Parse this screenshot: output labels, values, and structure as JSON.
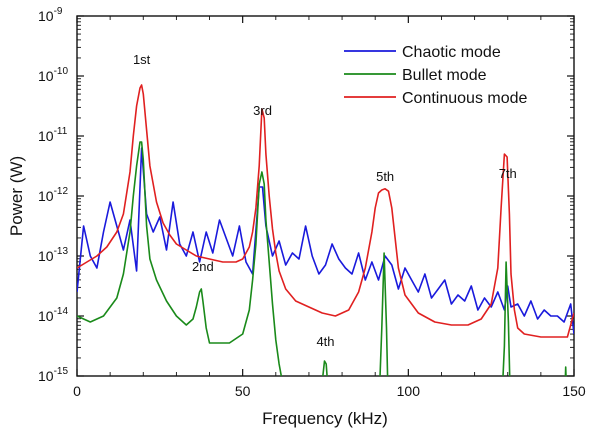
{
  "chart_data": {
    "type": "line",
    "xlabel": "Frequency (kHz)",
    "ylabel": "Power (W)",
    "xlim": [
      0,
      150
    ],
    "ylim_log10": [
      -15,
      -9
    ],
    "yscale": "log",
    "x_ticks": [
      0,
      50,
      100,
      150
    ],
    "y_ticks": [
      {
        "base": "10",
        "exp": "-9"
      },
      {
        "base": "10",
        "exp": "-10"
      },
      {
        "base": "10",
        "exp": "-11"
      },
      {
        "base": "10",
        "exp": "-12"
      },
      {
        "base": "10",
        "exp": "-13"
      },
      {
        "base": "10",
        "exp": "-14"
      },
      {
        "base": "10",
        "exp": "-15"
      }
    ],
    "legend_position": "top-right",
    "annotations": [
      {
        "text": "1st",
        "x": 19.5,
        "log10y": -9.8
      },
      {
        "text": "2nd",
        "x": 38,
        "log10y": -13.25
      },
      {
        "text": "3rd",
        "x": 56,
        "log10y": -10.65
      },
      {
        "text": "4th",
        "x": 75,
        "log10y": -14.5
      },
      {
        "text": "5th",
        "x": 93,
        "log10y": -11.75
      },
      {
        "text": "7th",
        "x": 130,
        "log10y": -11.7
      }
    ],
    "series": [
      {
        "name": "Chaotic mode",
        "color": "#1a1adc",
        "x": [
          0,
          2,
          4,
          6,
          8,
          10,
          12,
          14,
          16,
          18,
          19.5,
          21,
          23,
          25,
          27,
          29,
          31,
          33,
          35,
          37,
          39,
          41,
          43,
          45,
          47,
          49,
          51,
          53,
          55,
          56,
          57,
          59,
          61,
          63,
          65,
          67,
          69,
          71,
          73,
          75,
          77,
          79,
          81,
          83,
          85,
          87,
          89,
          91,
          93,
          95,
          97,
          99,
          101,
          103,
          105,
          107,
          109,
          111,
          113,
          115,
          117,
          119,
          121,
          123,
          125,
          127,
          129,
          130,
          131,
          133,
          135,
          137,
          139,
          141,
          143,
          145,
          147,
          149,
          150
        ],
        "log10y": [
          -13.6,
          -12.5,
          -13.0,
          -13.2,
          -12.6,
          -12.1,
          -12.5,
          -12.9,
          -12.4,
          -13.25,
          -11.2,
          -12.3,
          -12.6,
          -12.35,
          -12.9,
          -12.1,
          -12.8,
          -13.0,
          -12.6,
          -13.1,
          -12.6,
          -12.95,
          -12.4,
          -12.7,
          -13.0,
          -12.5,
          -13.1,
          -13.3,
          -11.85,
          -11.85,
          -12.5,
          -13.0,
          -12.75,
          -13.15,
          -12.95,
          -13.05,
          -12.5,
          -13.0,
          -13.3,
          -13.15,
          -12.8,
          -13.05,
          -13.2,
          -13.3,
          -12.95,
          -13.4,
          -13.1,
          -13.4,
          -13.0,
          -13.15,
          -13.55,
          -13.2,
          -13.4,
          -13.6,
          -13.3,
          -13.7,
          -13.55,
          -13.4,
          -13.8,
          -13.65,
          -13.75,
          -13.5,
          -13.9,
          -13.7,
          -13.85,
          -13.6,
          -13.9,
          -13.5,
          -13.85,
          -13.8,
          -14.0,
          -13.75,
          -14.05,
          -13.9,
          -14.0,
          -14.0,
          -14.1,
          -13.8,
          -14.3
        ]
      },
      {
        "name": "Bullet mode",
        "color": "#1a8a1a",
        "x": [
          0,
          4,
          8,
          12,
          14,
          16,
          17,
          18,
          19,
          19.5,
          20,
          21,
          22,
          24,
          27,
          30,
          33,
          35,
          36,
          37,
          37.5,
          38,
          39,
          40,
          42,
          46,
          50,
          52,
          53,
          54,
          55,
          55.8,
          56.5,
          57,
          58,
          59,
          60,
          61,
          62,
          63,
          64,
          70,
          73,
          74,
          74.7,
          75.2,
          76,
          78,
          90,
          91,
          92,
          92.7,
          93.4,
          94,
          95,
          128,
          129,
          129.5,
          130.2,
          130.9,
          131.5,
          132,
          147,
          147.5,
          148
        ],
        "log10y": [
          -14.0,
          -14.1,
          -14.0,
          -13.7,
          -13.3,
          -12.6,
          -12.0,
          -11.5,
          -11.1,
          -11.1,
          -11.4,
          -12.5,
          -13.05,
          -13.4,
          -13.75,
          -14.0,
          -14.15,
          -14.05,
          -13.85,
          -13.6,
          -13.55,
          -13.75,
          -14.2,
          -14.45,
          -14.45,
          -14.45,
          -14.3,
          -13.9,
          -13.4,
          -12.8,
          -11.8,
          -11.6,
          -11.8,
          -12.4,
          -13.1,
          -13.8,
          -14.4,
          -14.8,
          -15.1,
          -15.5,
          -15.7,
          -15.7,
          -15.5,
          -15.1,
          -14.75,
          -14.8,
          -15.4,
          -15.7,
          -15.7,
          -15.7,
          -14.2,
          -12.95,
          -14.2,
          -15.7,
          -15.7,
          -15.7,
          -14.5,
          -13.1,
          -14.1,
          -15.7,
          -15.7,
          -15.7,
          -15.7,
          -14.85,
          -15.7
        ]
      },
      {
        "name": "Continuous mode",
        "color": "#e02020",
        "x": [
          0,
          3,
          6,
          9,
          12,
          14,
          16,
          17,
          18,
          19,
          19.5,
          20,
          21,
          22,
          24,
          26,
          28,
          30,
          33,
          36,
          40,
          44,
          48,
          50,
          52,
          53,
          54,
          55,
          55.8,
          56.5,
          57,
          58,
          59,
          60,
          61,
          63,
          66,
          70,
          74,
          78,
          82,
          85,
          87,
          89,
          90,
          91,
          92,
          93,
          94,
          95,
          96,
          97,
          99,
          103,
          108,
          113,
          118,
          122,
          125,
          127,
          128,
          129,
          129.8,
          130.5,
          131,
          132,
          133,
          135,
          140,
          145,
          148,
          149,
          150
        ],
        "log10y": [
          -13.2,
          -13.1,
          -13.0,
          -12.85,
          -12.6,
          -12.3,
          -11.6,
          -11.0,
          -10.5,
          -10.2,
          -10.15,
          -10.3,
          -10.9,
          -11.5,
          -12.1,
          -12.45,
          -12.65,
          -12.8,
          -12.9,
          -13.0,
          -13.05,
          -13.1,
          -13.1,
          -13.05,
          -12.85,
          -12.6,
          -12.2,
          -11.5,
          -10.55,
          -10.7,
          -11.3,
          -12.0,
          -12.55,
          -12.95,
          -13.25,
          -13.55,
          -13.75,
          -13.85,
          -13.95,
          -14.0,
          -13.9,
          -13.6,
          -13.2,
          -12.6,
          -12.2,
          -11.95,
          -11.9,
          -11.88,
          -11.92,
          -12.2,
          -12.7,
          -13.2,
          -13.65,
          -13.95,
          -14.1,
          -14.15,
          -14.15,
          -14.05,
          -13.8,
          -13.2,
          -12.2,
          -11.3,
          -11.35,
          -12.3,
          -13.3,
          -13.9,
          -14.2,
          -14.3,
          -14.35,
          -14.35,
          -14.35,
          -14.15,
          -13.95
        ]
      }
    ]
  }
}
